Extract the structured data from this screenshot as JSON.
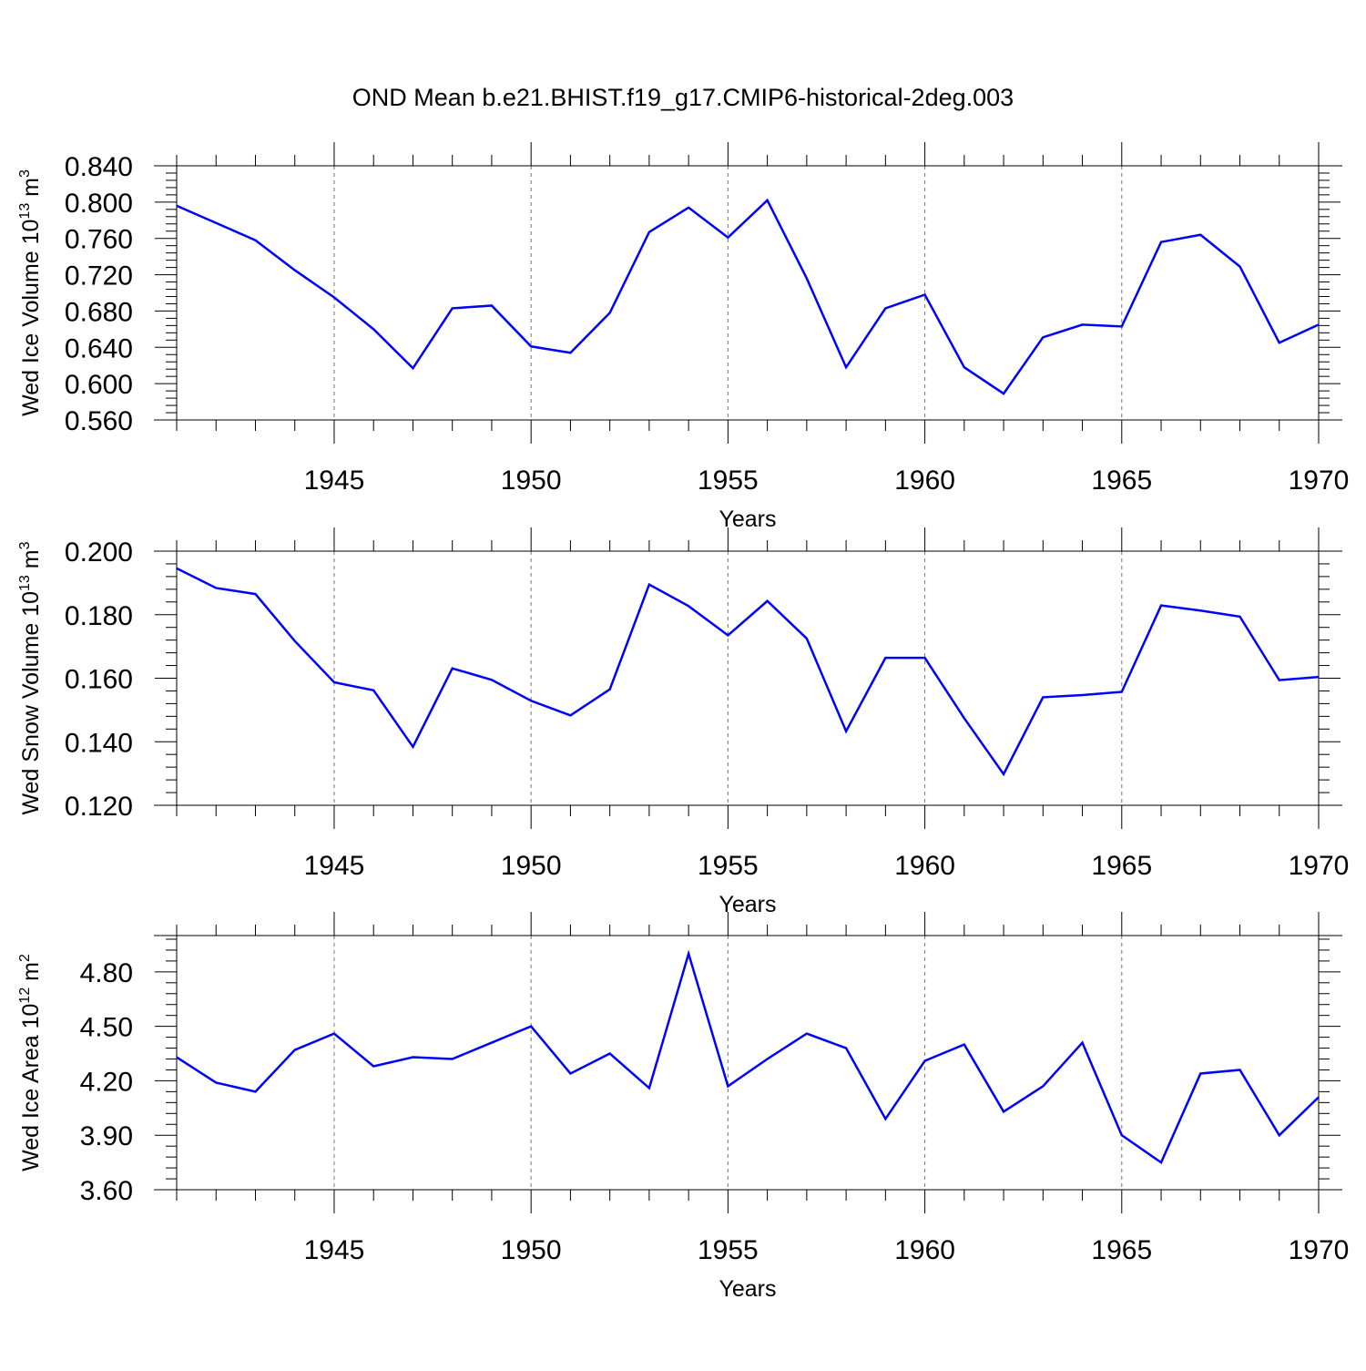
{
  "title": "OND Mean b.e21.BHIST.f19_g17.CMIP6-historical-2deg.003",
  "line_color": "#0000ff",
  "chart_data": [
    {
      "type": "line",
      "title": "",
      "xlabel": "Years",
      "ylabel_main": "Wed Ice Volume 10",
      "ylabel_exp": "13",
      "ylabel_unit": " m",
      "ylabel_unit_exp": "3",
      "xlim": [
        1941,
        1970
      ],
      "ylim": [
        0.56,
        0.84
      ],
      "yticks": [
        0.56,
        0.6,
        0.64,
        0.68,
        0.72,
        0.76,
        0.8,
        0.84
      ],
      "ytick_labels": [
        "0.560",
        "0.600",
        "0.640",
        "0.680",
        "0.720",
        "0.760",
        "0.800",
        "0.840"
      ],
      "xticks": [
        1945,
        1950,
        1955,
        1960,
        1965,
        1970
      ],
      "xtick_labels": [
        "1945",
        "1950",
        "1955",
        "1960",
        "1965",
        "1970"
      ],
      "grid": "vertical dashed at major x ticks",
      "x": [
        1941,
        1942,
        1943,
        1944,
        1945,
        1946,
        1947,
        1948,
        1949,
        1950,
        1951,
        1952,
        1953,
        1954,
        1955,
        1956,
        1957,
        1958,
        1959,
        1960,
        1961,
        1962,
        1963,
        1964,
        1965,
        1966,
        1967,
        1968,
        1969,
        1970
      ],
      "series": [
        {
          "values": [
            0.796,
            0.777,
            0.758,
            0.725,
            0.695,
            0.66,
            0.617,
            0.683,
            0.686,
            0.641,
            0.634,
            0.678,
            0.767,
            0.794,
            0.761,
            0.802,
            0.716,
            0.618,
            0.683,
            0.698,
            0.618,
            0.589,
            0.651,
            0.665,
            0.663,
            0.756,
            0.764,
            0.729,
            0.645,
            0.665
          ]
        }
      ]
    },
    {
      "type": "line",
      "title": "",
      "xlabel": "Years",
      "ylabel_main": "Wed Snow Volume 10",
      "ylabel_exp": "13",
      "ylabel_unit": " m",
      "ylabel_unit_exp": "3",
      "xlim": [
        1941,
        1970
      ],
      "ylim": [
        0.12,
        0.2
      ],
      "yticks": [
        0.12,
        0.14,
        0.16,
        0.18,
        0.2
      ],
      "ytick_labels": [
        "0.120",
        "0.140",
        "0.160",
        "0.180",
        "0.200"
      ],
      "xticks": [
        1945,
        1950,
        1955,
        1960,
        1965,
        1970
      ],
      "xtick_labels": [
        "1945",
        "1950",
        "1955",
        "1960",
        "1965",
        "1970"
      ],
      "grid": "vertical dashed at major x ticks",
      "x": [
        1941,
        1942,
        1943,
        1944,
        1945,
        1946,
        1947,
        1948,
        1949,
        1950,
        1951,
        1952,
        1953,
        1954,
        1955,
        1956,
        1957,
        1958,
        1959,
        1960,
        1961,
        1962,
        1963,
        1964,
        1965,
        1966,
        1967,
        1968,
        1969,
        1970
      ],
      "series": [
        {
          "values": [
            0.1946,
            0.1884,
            0.1865,
            0.1717,
            0.1587,
            0.1562,
            0.1384,
            0.1631,
            0.1595,
            0.1529,
            0.1483,
            0.1565,
            0.1895,
            0.1827,
            0.1735,
            0.1843,
            0.1725,
            0.1433,
            0.1664,
            0.1664,
            0.1474,
            0.1298,
            0.154,
            0.1547,
            0.1557,
            0.1829,
            0.1813,
            0.1794,
            0.1594,
            0.1604
          ]
        }
      ]
    },
    {
      "type": "line",
      "title": "",
      "xlabel": "Years",
      "ylabel_main": "Wed Ice Area 10",
      "ylabel_exp": "12",
      "ylabel_unit": " m",
      "ylabel_unit_exp": "2",
      "xlim": [
        1941,
        1970
      ],
      "ylim": [
        3.6,
        5.0
      ],
      "yticks": [
        3.6,
        3.9,
        4.2,
        4.5,
        4.8
      ],
      "ytick_labels": [
        "3.60",
        "3.90",
        "4.20",
        "4.50",
        "4.80"
      ],
      "xticks": [
        1945,
        1950,
        1955,
        1960,
        1965,
        1970
      ],
      "xtick_labels": [
        "1945",
        "1950",
        "1955",
        "1960",
        "1965",
        "1970"
      ],
      "grid": "vertical dashed at major x ticks",
      "x": [
        1941,
        1942,
        1943,
        1944,
        1945,
        1946,
        1947,
        1948,
        1949,
        1950,
        1951,
        1952,
        1953,
        1954,
        1955,
        1956,
        1957,
        1958,
        1959,
        1960,
        1961,
        1962,
        1963,
        1964,
        1965,
        1966,
        1967,
        1968,
        1969,
        1970
      ],
      "series": [
        {
          "values": [
            4.33,
            4.19,
            4.14,
            4.37,
            4.46,
            4.28,
            4.33,
            4.32,
            4.41,
            4.5,
            4.24,
            4.35,
            4.16,
            4.9,
            4.17,
            4.32,
            4.46,
            4.38,
            3.99,
            4.31,
            4.4,
            4.03,
            4.17,
            4.41,
            3.9,
            3.75,
            4.24,
            4.26,
            3.9,
            4.11
          ]
        }
      ]
    }
  ]
}
